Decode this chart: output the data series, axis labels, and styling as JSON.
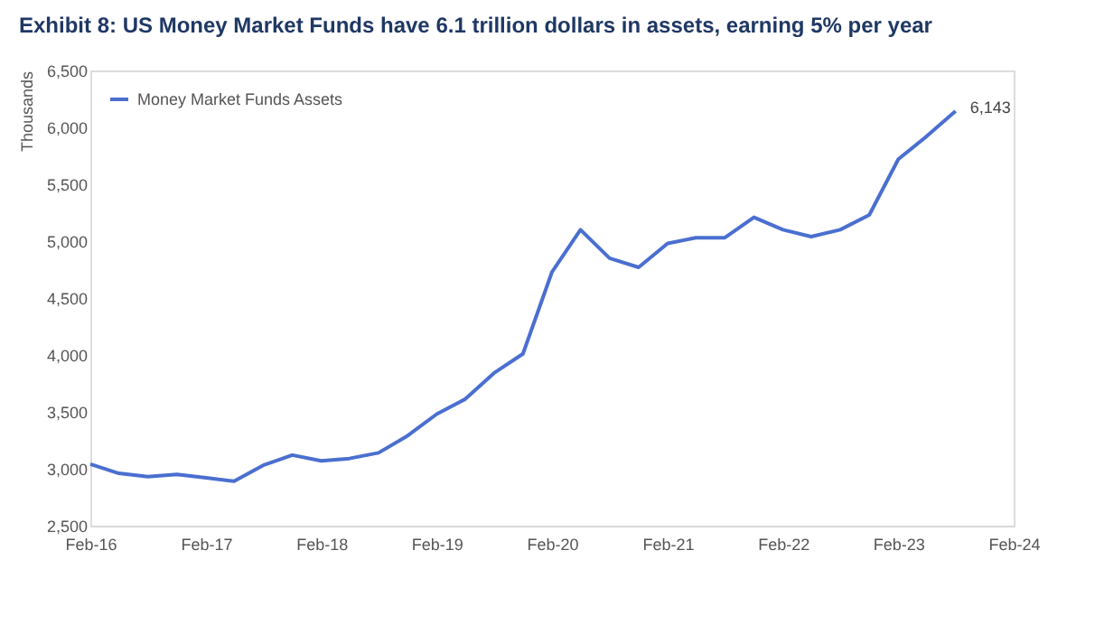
{
  "chart_data": {
    "type": "line",
    "title": "Exhibit 8: US Money Market Funds have 6.1 trillion dollars in assets, earning 5% per year",
    "ylabel": "Thousands",
    "x": [
      "2016-02",
      "2016-05",
      "2016-08",
      "2016-11",
      "2017-02",
      "2017-05",
      "2017-08",
      "2017-11",
      "2018-02",
      "2018-05",
      "2018-08",
      "2018-11",
      "2019-02",
      "2019-05",
      "2019-08",
      "2019-11",
      "2020-02",
      "2020-05",
      "2020-08",
      "2020-11",
      "2021-02",
      "2021-05",
      "2021-08",
      "2021-11",
      "2022-02",
      "2022-05",
      "2022-08",
      "2022-11",
      "2023-02",
      "2023-05",
      "2023-08"
    ],
    "series": [
      {
        "name": "Money Market Funds Assets",
        "color": "#4a6fd0",
        "values": [
          3040,
          2960,
          2930,
          2950,
          2920,
          2890,
          3030,
          3120,
          3070,
          3090,
          3140,
          3290,
          3480,
          3610,
          3840,
          4010,
          4730,
          5100,
          4850,
          4770,
          4980,
          5030,
          5030,
          5210,
          5100,
          5040,
          5100,
          5230,
          5720,
          5920,
          6143
        ]
      }
    ],
    "xlim": [
      "2016-02",
      "2024-02"
    ],
    "xticks": [
      {
        "value": "2016-02",
        "label": "Feb-16"
      },
      {
        "value": "2017-02",
        "label": "Feb-17"
      },
      {
        "value": "2018-02",
        "label": "Feb-18"
      },
      {
        "value": "2019-02",
        "label": "Feb-19"
      },
      {
        "value": "2020-02",
        "label": "Feb-20"
      },
      {
        "value": "2021-02",
        "label": "Feb-21"
      },
      {
        "value": "2022-02",
        "label": "Feb-22"
      },
      {
        "value": "2023-02",
        "label": "Feb-23"
      },
      {
        "value": "2024-02",
        "label": "Feb-24"
      }
    ],
    "ylim": [
      2500,
      6500
    ],
    "yticks": [
      {
        "value": 2500,
        "label": "2,500"
      },
      {
        "value": 3000,
        "label": "3,000"
      },
      {
        "value": 3500,
        "label": "3,500"
      },
      {
        "value": 4000,
        "label": "4,000"
      },
      {
        "value": 4500,
        "label": "4,500"
      },
      {
        "value": 5000,
        "label": "5,000"
      },
      {
        "value": 5500,
        "label": "5,500"
      },
      {
        "value": 6000,
        "label": "6,000"
      },
      {
        "value": 6500,
        "label": "6,500"
      }
    ],
    "annotations": [
      {
        "text": "6,143",
        "x": "2023-08",
        "y": 6143
      }
    ],
    "grid": false,
    "legend": "top left",
    "marker": "none",
    "line_style": "solid"
  }
}
